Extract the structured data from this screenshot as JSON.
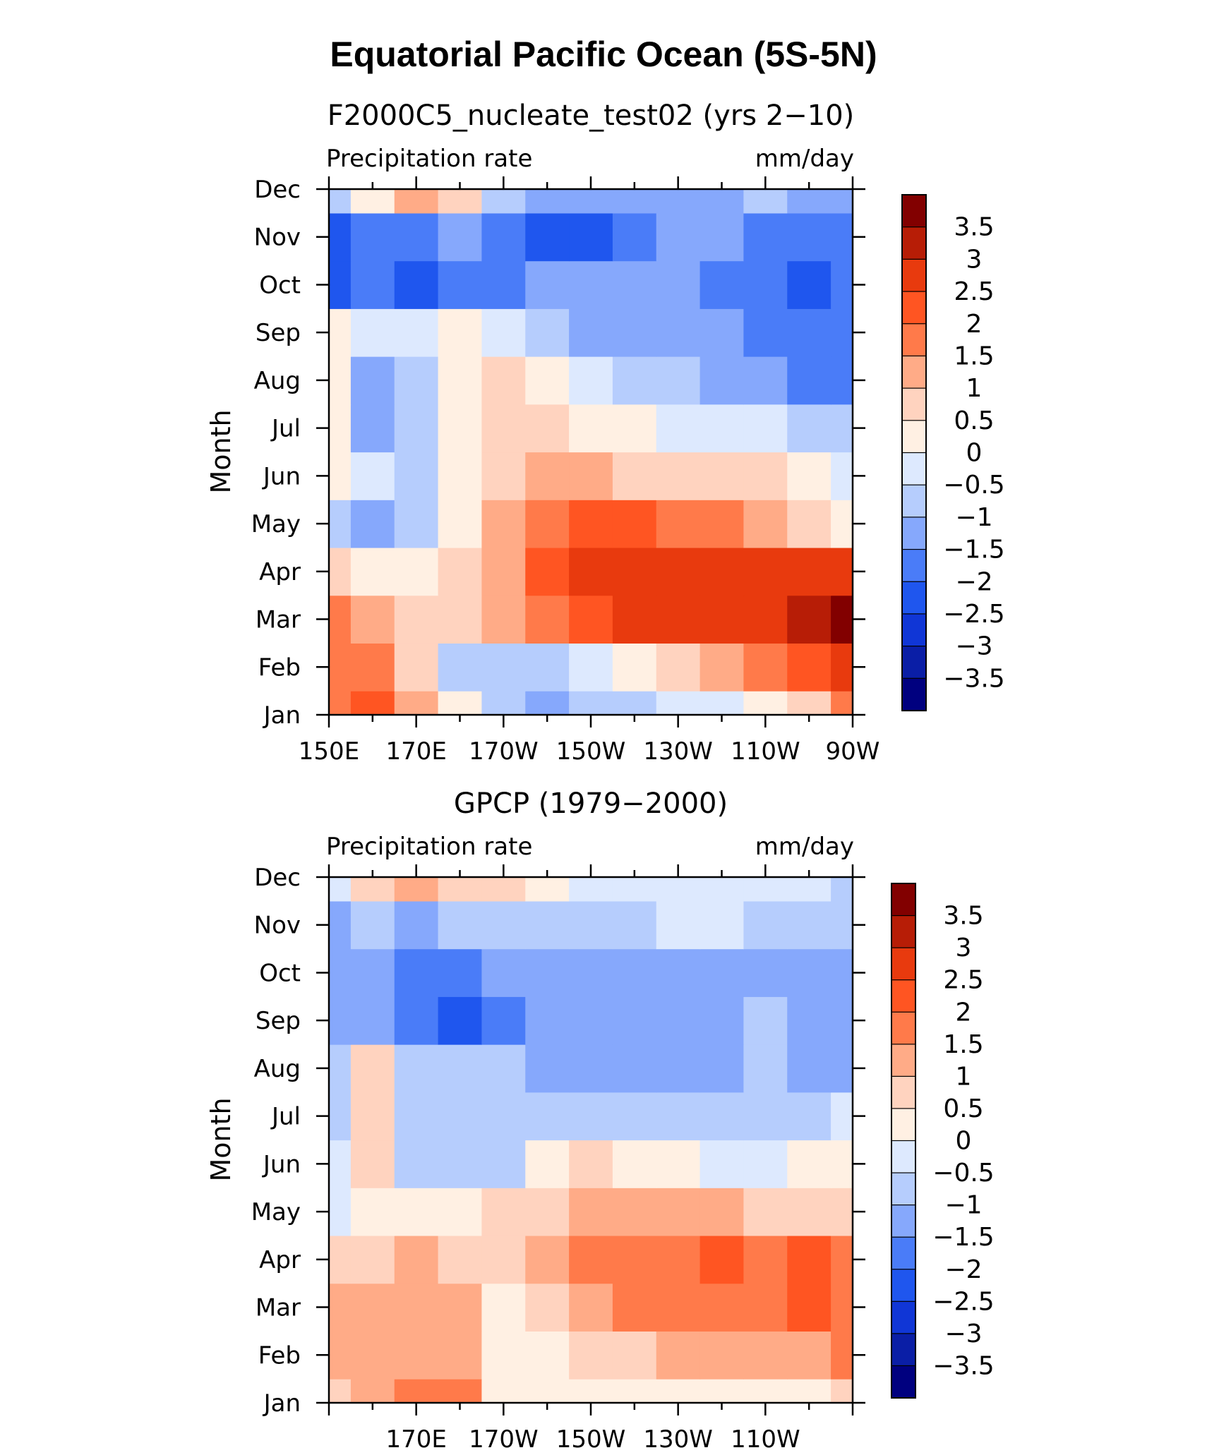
{
  "figure": {
    "title": "Equatorial Pacific Ocean (5S-5N)"
  },
  "colorbar": {
    "colors": [
      "#00007f",
      "#0a1ea6",
      "#1036d6",
      "#1f56ee",
      "#4a7cf8",
      "#86a8fc",
      "#b6cdfd",
      "#dde9fe",
      "#fff0e3",
      "#ffd3bf",
      "#ffab87",
      "#ff7a4a",
      "#ff5522",
      "#e83a0e",
      "#b71d06",
      "#820000"
    ],
    "tick_labels": [
      "3.5",
      "3",
      "2.5",
      "2",
      "1.5",
      "1",
      "0.5",
      "0",
      "−0.5",
      "−1",
      "−1.5",
      "−2",
      "−2.5",
      "−3",
      "−3.5"
    ]
  },
  "chart_data": [
    {
      "type": "heatmap",
      "title": "F2000C5_nucleate_test02 (yrs 2−10)",
      "left_label": "Precipitation rate",
      "right_label": "mm/day",
      "ylabel": "Month",
      "y_ticks": [
        "Jan",
        "Feb",
        "Mar",
        "Apr",
        "May",
        "Jun",
        "Jul",
        "Aug",
        "Sep",
        "Oct",
        "Nov",
        "Dec"
      ],
      "x_ticks": [
        "150E",
        "170E",
        "170W",
        "150W",
        "130W",
        "110W",
        "90W"
      ],
      "xlim": [
        150,
        270
      ],
      "levels": [
        -3.5,
        -3,
        -2.5,
        -2,
        -1.5,
        -1,
        -0.5,
        0,
        0.5,
        1,
        1.5,
        2,
        2.5,
        3,
        3.5
      ],
      "x": [
        150,
        160,
        170,
        180,
        190,
        200,
        210,
        220,
        230,
        240,
        250,
        260,
        270
      ],
      "months": [
        "Jan",
        "Feb",
        "Mar",
        "Apr",
        "May",
        "Jun",
        "Jul",
        "Aug",
        "Sep",
        "Oct",
        "Nov",
        "Dec"
      ],
      "values": [
        [
          1.6,
          2.2,
          1.2,
          0.3,
          -0.7,
          -1.2,
          -0.9,
          -0.6,
          -0.4,
          -0.1,
          0.4,
          0.8,
          1.6
        ],
        [
          1.8,
          1.6,
          0.6,
          -0.6,
          -1.0,
          -0.7,
          -0.2,
          0.4,
          0.9,
          1.2,
          1.6,
          2.0,
          2.6
        ],
        [
          1.9,
          1.0,
          0.6,
          0.8,
          1.2,
          1.8,
          2.2,
          2.5,
          2.7,
          2.8,
          2.9,
          3.1,
          3.7
        ],
        [
          0.8,
          0.2,
          0.0,
          0.5,
          1.2,
          2.2,
          2.6,
          2.8,
          2.8,
          2.7,
          2.6,
          2.6,
          2.7
        ],
        [
          -1.0,
          -1.3,
          -0.7,
          0.3,
          1.1,
          1.8,
          2.0,
          2.0,
          1.8,
          1.5,
          1.1,
          0.7,
          0.3
        ],
        [
          0.4,
          -0.3,
          -0.9,
          0.3,
          0.8,
          1.0,
          1.0,
          0.9,
          0.8,
          0.6,
          0.5,
          0.2,
          -0.3
        ],
        [
          0.3,
          -1.1,
          -0.9,
          0.3,
          0.6,
          0.6,
          0.4,
          0.2,
          -0.1,
          -0.3,
          -0.4,
          -0.6,
          -0.7
        ],
        [
          0.2,
          -1.3,
          -0.7,
          0.3,
          0.5,
          0.0,
          -0.5,
          -0.7,
          -0.9,
          -1.1,
          -1.5,
          -1.7,
          -1.8
        ],
        [
          0.3,
          -0.4,
          -0.4,
          0.3,
          -0.3,
          -0.9,
          -1.2,
          -1.3,
          -1.4,
          -1.4,
          -1.8,
          -1.9,
          -1.8
        ],
        [
          -2.1,
          -2.0,
          -2.3,
          -2.0,
          -1.6,
          -1.4,
          -1.3,
          -1.4,
          -1.5,
          -1.6,
          -2.0,
          -2.1,
          -2.0
        ],
        [
          -2.3,
          -1.8,
          -1.6,
          -1.4,
          -2.0,
          -2.1,
          -2.1,
          -1.7,
          -1.2,
          -1.3,
          -2.0,
          -2.0,
          -1.8
        ],
        [
          -0.6,
          0.3,
          1.2,
          0.6,
          -0.6,
          -1.2,
          -1.4,
          -1.3,
          -1.2,
          -1.1,
          -1.0,
          -1.1,
          -1.2
        ]
      ]
    },
    {
      "type": "heatmap",
      "title": "GPCP (1979−2000)",
      "left_label": "Precipitation rate",
      "right_label": "mm/day",
      "ylabel": "Month",
      "y_ticks": [
        "Jan",
        "Feb",
        "Mar",
        "Apr",
        "May",
        "Jun",
        "Jul",
        "Aug",
        "Sep",
        "Oct",
        "Nov",
        "Dec"
      ],
      "x_ticks": [
        "170E",
        "170W",
        "150W",
        "130W",
        "110W"
      ],
      "xlim": [
        150,
        270
      ],
      "levels": [
        -3.5,
        -3,
        -2.5,
        -2,
        -1.5,
        -1,
        -0.5,
        0,
        0.5,
        1,
        1.5,
        2,
        2.5,
        3,
        3.5
      ],
      "x": [
        150,
        160,
        170,
        180,
        190,
        200,
        210,
        220,
        230,
        240,
        250,
        260,
        270
      ],
      "months": [
        "Jan",
        "Feb",
        "Mar",
        "Apr",
        "May",
        "Jun",
        "Jul",
        "Aug",
        "Sep",
        "Oct",
        "Nov",
        "Dec"
      ],
      "values": [
        [
          0.8,
          1.3,
          1.6,
          1.8,
          0.3,
          0.2,
          0.1,
          0.1,
          0.2,
          0.3,
          0.3,
          0.4,
          0.5
        ],
        [
          1.1,
          1.3,
          1.0,
          1.2,
          0.3,
          0.4,
          0.5,
          0.8,
          1.0,
          1.1,
          1.2,
          1.3,
          1.5
        ],
        [
          1.0,
          1.2,
          1.3,
          1.4,
          0.4,
          0.9,
          1.3,
          1.6,
          1.8,
          1.9,
          1.7,
          2.0,
          1.8
        ],
        [
          0.5,
          0.9,
          1.1,
          0.8,
          0.6,
          1.0,
          1.6,
          1.8,
          1.9,
          2.0,
          1.8,
          2.0,
          1.6
        ],
        [
          -0.4,
          0.3,
          0.1,
          0.3,
          0.6,
          0.8,
          1.0,
          1.2,
          1.1,
          1.0,
          0.9,
          0.9,
          0.8
        ],
        [
          -0.4,
          0.7,
          -0.6,
          -0.7,
          -0.6,
          0.2,
          0.5,
          0.3,
          0.1,
          -0.1,
          -0.1,
          0.0,
          0.2
        ],
        [
          -0.6,
          0.8,
          -0.7,
          -0.8,
          -0.8,
          -0.6,
          -0.6,
          -0.7,
          -0.7,
          -0.7,
          -0.8,
          -0.9,
          -0.5
        ],
        [
          -0.8,
          0.6,
          -0.9,
          -1.0,
          -1.0,
          -1.1,
          -1.1,
          -1.4,
          -1.4,
          -1.4,
          -1.0,
          -1.4,
          -1.4
        ],
        [
          -1.4,
          -1.4,
          -1.8,
          -2.1,
          -1.6,
          -1.2,
          -1.4,
          -1.4,
          -1.5,
          -1.4,
          -1.0,
          -1.4,
          -1.5
        ],
        [
          -1.3,
          -1.5,
          -1.7,
          -1.9,
          -1.5,
          -1.1,
          -1.3,
          -1.5,
          -1.4,
          -1.3,
          -1.1,
          -1.2,
          -1.5
        ],
        [
          -1.3,
          -1.0,
          -1.2,
          -1.0,
          -0.9,
          -0.7,
          -0.6,
          -0.6,
          -0.5,
          -0.5,
          -0.6,
          -0.7,
          -0.8
        ],
        [
          -0.4,
          0.7,
          1.1,
          0.8,
          0.5,
          0.1,
          -0.2,
          -0.3,
          -0.4,
          -0.4,
          -0.5,
          -0.5,
          -0.6
        ]
      ]
    }
  ]
}
